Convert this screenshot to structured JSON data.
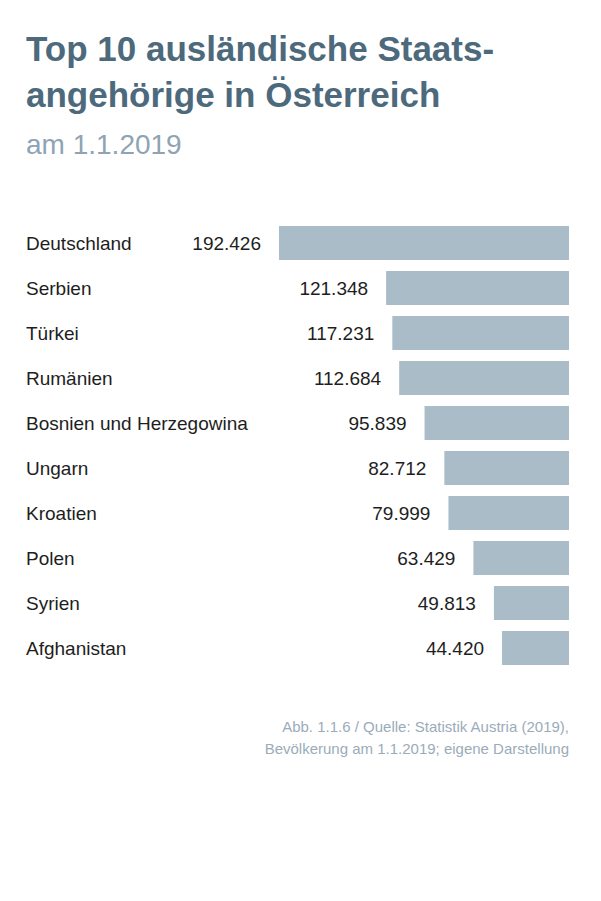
{
  "chart_data": {
    "type": "bar",
    "title": "Top 10 ausländische Staats-\nangehörige in Österreich",
    "subtitle": "am 1.1.2019",
    "categories": [
      "Deutschland",
      "Serbien",
      "Türkei",
      "Rumänien",
      "Bosnien und Herzegowina",
      "Ungarn",
      "Kroatien",
      "Polen",
      "Syrien",
      "Afghanistan"
    ],
    "values": [
      192426,
      121348,
      117231,
      112684,
      95839,
      82712,
      79999,
      63429,
      49813,
      44420
    ],
    "value_labels": [
      "192.426",
      "121.348",
      "117.231",
      "112.684",
      "95.839",
      "82.712",
      "79.999",
      "63.429",
      "49.813",
      "44.420"
    ],
    "data_labels": true,
    "color": "#a9bcc8",
    "orientation": "horizontal",
    "xlim": [
      0,
      192426
    ],
    "tick_labels": false,
    "grid": false,
    "caption": [
      "Abb. 1.1.6 / Quelle: Statistik Austria (2019),",
      "Bevölkerung am 1.1.2019; eigene Darstellung"
    ]
  }
}
